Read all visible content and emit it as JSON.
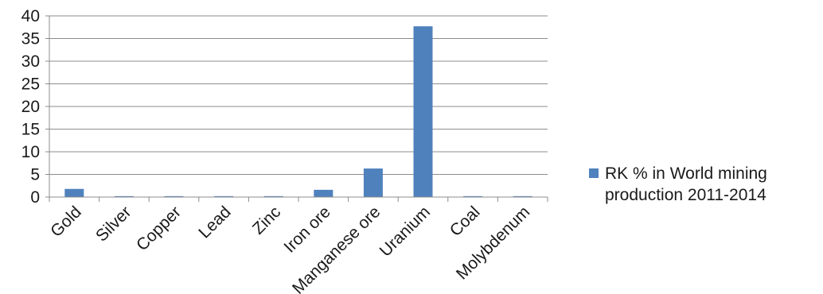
{
  "chart_data": {
    "type": "bar",
    "categories": [
      "Gold",
      "Silver",
      "Copper",
      "Lead",
      "Zinc",
      "Iron ore",
      "Manganese ore",
      "Uranium",
      "Coal",
      "Molybdenum"
    ],
    "series": [
      {
        "name": "RK % in World mining production 2011-2014",
        "values": [
          1.8,
          0.2,
          0.2,
          0.2,
          0.2,
          1.6,
          6.3,
          37.7,
          0.2,
          0.2
        ]
      }
    ],
    "ylim": [
      0,
      40
    ],
    "yticks": [
      0,
      5,
      10,
      15,
      20,
      25,
      30,
      35,
      40
    ],
    "grid": true,
    "legend_position": "right",
    "bar_color": "#4F81BD"
  }
}
